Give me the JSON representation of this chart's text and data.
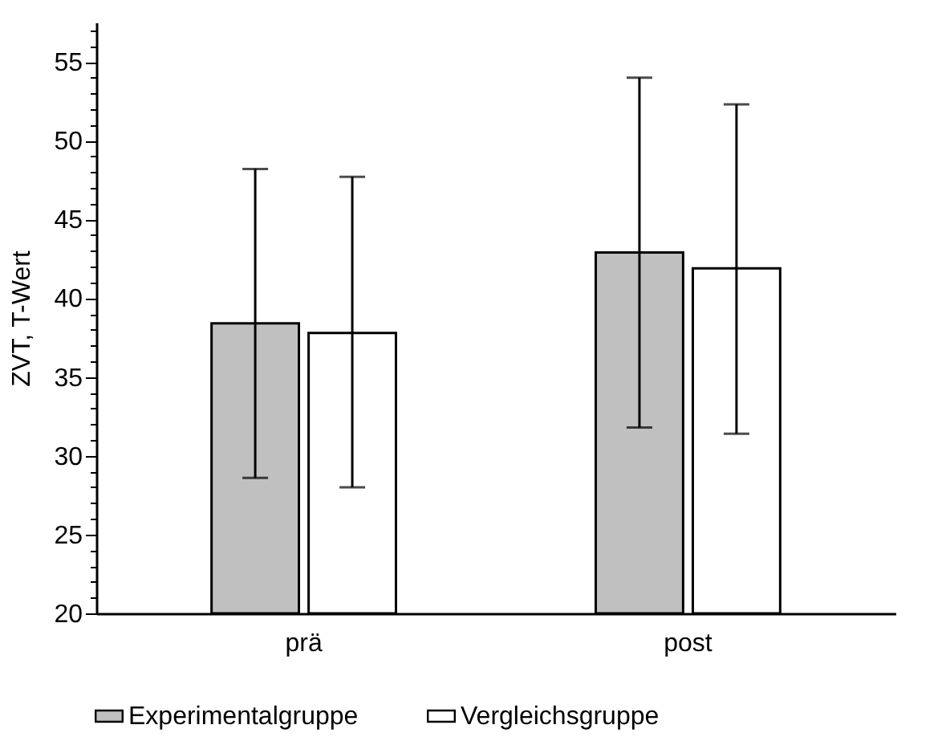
{
  "chart_data": {
    "type": "bar",
    "ylabel": "ZVT, T-Wert",
    "categories": [
      "prä",
      "post"
    ],
    "series": [
      {
        "name": "Experimentalgruppe",
        "color": "#c0c0c0",
        "values": [
          38.4,
          42.9
        ],
        "errors": [
          [
            28.6,
            48.2
          ],
          [
            31.8,
            54.0
          ]
        ]
      },
      {
        "name": "Vergleichsgruppe",
        "color": "#ffffff",
        "values": [
          37.8,
          41.9
        ],
        "errors": [
          [
            28.0,
            47.7
          ],
          [
            31.4,
            52.3
          ]
        ]
      }
    ],
    "ylim": [
      20,
      57.5
    ],
    "yticks": [
      20,
      {
        "value": 21,
        "label": null
      },
      {
        "value": 22,
        "label": null
      },
      {
        "value": 23,
        "label": null
      },
      {
        "value": 24,
        "label": null
      },
      25,
      {
        "value": 26,
        "label": null
      },
      {
        "value": 27,
        "label": null
      },
      {
        "value": 28,
        "label": null
      },
      {
        "value": 29,
        "label": null
      },
      30,
      {
        "value": 31,
        "label": null
      },
      {
        "value": 32,
        "label": null
      },
      {
        "value": 33,
        "label": null
      },
      {
        "value": 34,
        "label": null
      },
      35,
      {
        "value": 36,
        "label": null
      },
      {
        "value": 37,
        "label": null
      },
      {
        "value": 38,
        "label": null
      },
      {
        "value": 39,
        "label": null
      },
      40,
      {
        "value": 41,
        "label": null
      },
      {
        "value": 42,
        "label": null
      },
      {
        "value": 43,
        "label": null
      },
      {
        "value": 44,
        "label": null
      },
      45,
      {
        "value": 46,
        "label": null
      },
      {
        "value": 47,
        "label": null
      },
      {
        "value": 48,
        "label": null
      },
      {
        "value": 49,
        "label": null
      },
      50,
      {
        "value": 51,
        "label": null
      },
      {
        "value": 52,
        "label": null
      },
      {
        "value": 53,
        "label": null
      },
      {
        "value": 54,
        "label": null
      },
      55,
      {
        "value": 56,
        "label": null
      },
      {
        "value": 57,
        "label": null
      }
    ],
    "legend": "bottom"
  }
}
